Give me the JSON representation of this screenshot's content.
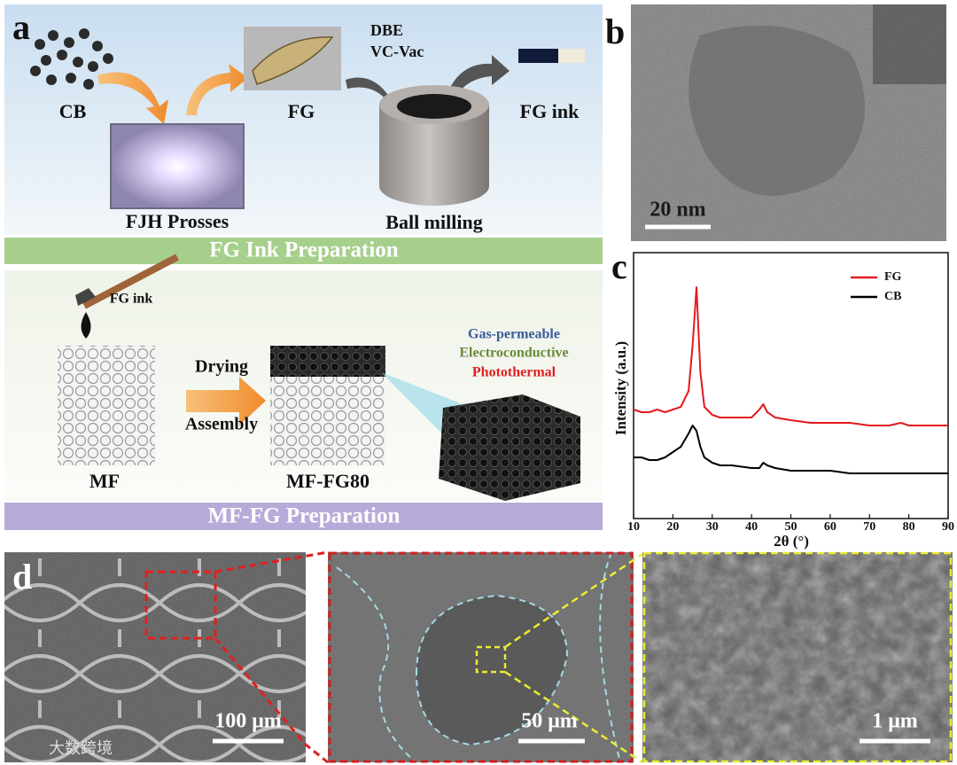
{
  "panels": {
    "a": {
      "label": "a",
      "cb": "CB",
      "fg": "FG",
      "dbe": "DBE",
      "vcvac": "VC-Vac",
      "fg_ink": "FG ink",
      "fjh": "FJH Prosses",
      "ball": "Ball milling",
      "banner1": "FG Ink Preparation",
      "fg_ink2": "FG ink",
      "drying": "Drying",
      "assembly": "Assembly",
      "mf": "MF",
      "mffg": "MF-FG80",
      "gas": "Gas-permeable",
      "elec": "Electroconductive",
      "photo": "Photothermal",
      "banner2": "MF-FG Preparation"
    },
    "b": {
      "label": "b",
      "scale": "20 nm"
    },
    "c": {
      "label": "c"
    },
    "d": {
      "label": "d",
      "scale1": "100 μm",
      "scale2": "50 μm",
      "scale3": "1 μm",
      "watermark": "大数跨境"
    }
  },
  "chart_data": {
    "type": "line",
    "xlabel": "2θ (°)",
    "ylabel": "Intensity (a.u.)",
    "x": [
      10,
      12,
      14,
      16,
      18,
      20,
      22,
      24,
      25,
      26,
      27,
      28,
      30,
      32,
      35,
      40,
      42,
      43,
      44,
      46,
      50,
      55,
      60,
      65,
      70,
      75,
      78,
      80,
      85,
      90
    ],
    "series": [
      {
        "name": "FG",
        "color": "#e31a1c",
        "values": [
          41,
          40,
          40,
          41,
          40,
          41,
          42,
          48,
          65,
          87,
          55,
          42,
          39,
          38,
          38,
          38,
          41,
          43,
          40,
          38,
          37,
          36,
          36,
          36,
          35,
          35,
          36,
          35,
          35,
          35
        ]
      },
      {
        "name": "CB",
        "color": "#000000",
        "values": [
          23,
          23,
          22,
          22,
          23,
          25,
          27,
          32,
          35,
          33,
          27,
          23,
          21,
          20,
          20,
          19,
          19,
          21,
          20,
          19,
          18,
          18,
          18,
          17,
          17,
          17,
          17,
          17,
          17,
          17
        ]
      }
    ],
    "xlim": [
      10,
      90
    ],
    "xticks": [
      10,
      20,
      30,
      40,
      50,
      60,
      70,
      80,
      90
    ],
    "ylim": [
      0,
      100
    ],
    "legend": "upper right"
  }
}
